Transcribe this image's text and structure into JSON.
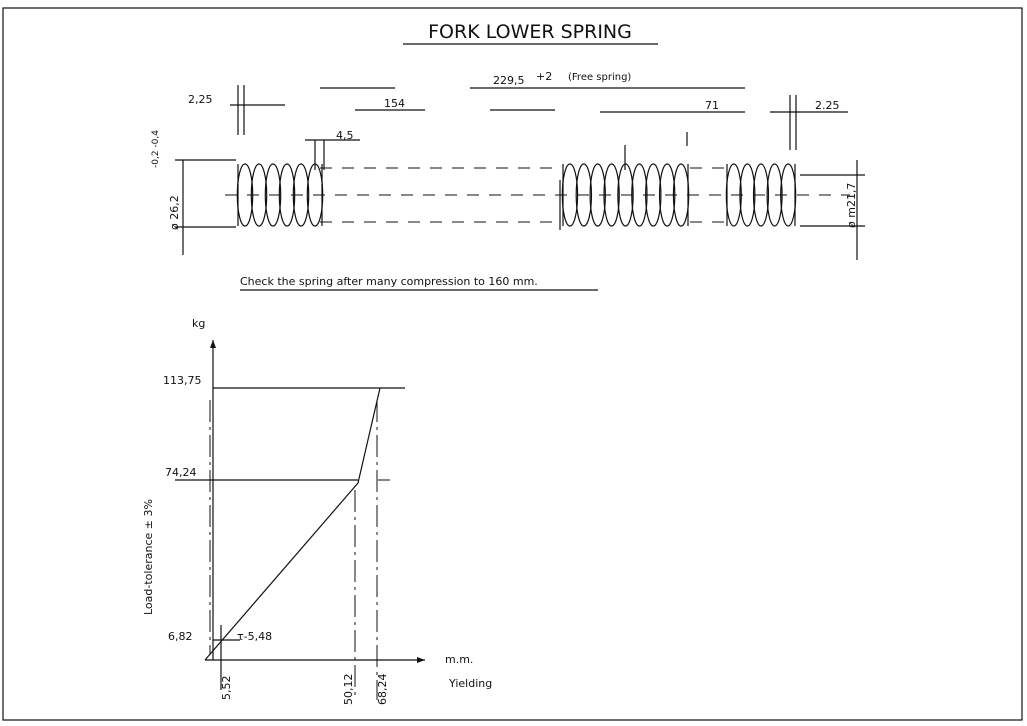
{
  "title": "FORK LOWER SPRING",
  "dimensions": {
    "free_length": "229,5",
    "free_length_tolerance": "+2",
    "free_note": "(Free spring)",
    "left_end": "2,25",
    "right_end": "2.25",
    "length_154": "154",
    "length_71": "71",
    "pitch": "4,5",
    "outer_diameter": "ø 26,2",
    "outer_tolerance": "-0,2 -0,4",
    "inner_diameter": "ø m21,7"
  },
  "note": "Check the spring after many compression to 160 mm.",
  "graph": {
    "y_unit": "kg",
    "x_unit": "m.m.",
    "y_label": "Load-tolerance ± 3%",
    "x_label": "Yielding",
    "loads": [
      "113,75",
      "74,24",
      "6,82"
    ],
    "deflections": [
      "5,52",
      "50,12",
      "68,24"
    ],
    "rate": "τ-5,48"
  }
}
